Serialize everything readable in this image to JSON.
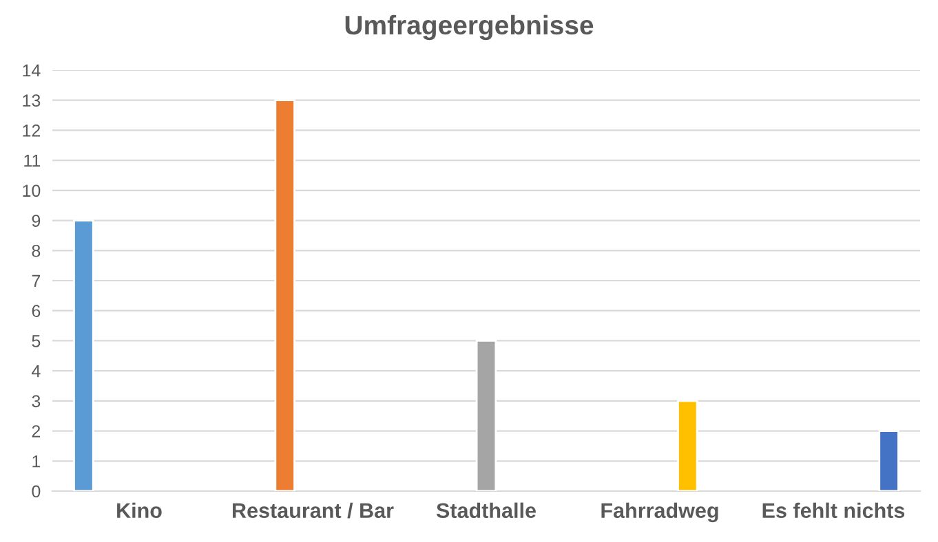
{
  "chart_data": {
    "type": "bar",
    "title": "Umfrageergebnisse",
    "categories": [
      "Kino",
      "Restaurant / Bar",
      "Stadthalle",
      "Fahrradweg",
      "Es fehlt nichts"
    ],
    "series": [
      {
        "color": "#5b9bd5",
        "values": [
          9,
          null,
          null,
          null,
          null
        ]
      },
      {
        "color": "#ed7d31",
        "values": [
          null,
          13,
          null,
          null,
          null
        ]
      },
      {
        "color": "#a5a5a5",
        "values": [
          null,
          null,
          5,
          null,
          null
        ]
      },
      {
        "color": "#ffc000",
        "values": [
          null,
          null,
          null,
          3,
          null
        ]
      },
      {
        "color": "#4472c4",
        "values": [
          null,
          null,
          null,
          null,
          2
        ]
      }
    ],
    "ylim": [
      0,
      14
    ],
    "yticks": [
      0,
      1,
      2,
      3,
      4,
      5,
      6,
      7,
      8,
      9,
      10,
      11,
      12,
      13,
      14
    ],
    "grid": "y",
    "legend": false
  }
}
